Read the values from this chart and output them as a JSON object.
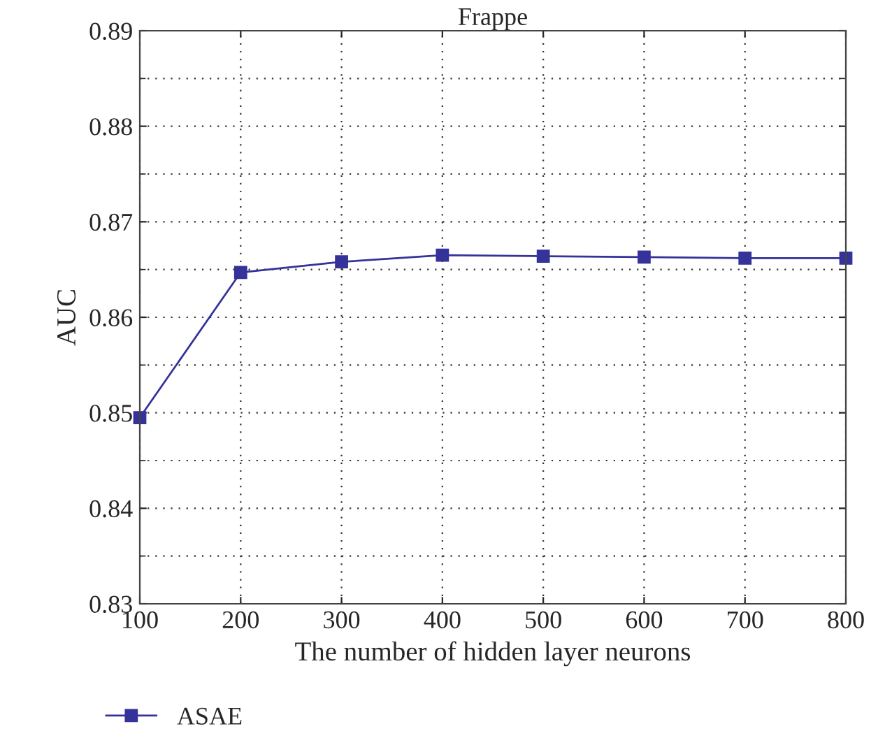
{
  "chart_data": {
    "type": "line",
    "title": "Frappe",
    "xlabel": "The number of hidden layer neurons",
    "ylabel": "AUC",
    "x": [
      100,
      200,
      300,
      400,
      500,
      600,
      700,
      800
    ],
    "series": [
      {
        "name": "ASAE",
        "color": "#35329a",
        "values": [
          0.8495,
          0.8647,
          0.8658,
          0.8665,
          0.8664,
          0.8663,
          0.8662,
          0.8662
        ]
      }
    ],
    "xlim": [
      100,
      800
    ],
    "xticks": [
      100,
      200,
      300,
      400,
      500,
      600,
      700,
      800
    ],
    "ylim": [
      0.83,
      0.89
    ],
    "yticks": [
      0.83,
      0.84,
      0.85,
      0.86,
      0.87,
      0.88,
      0.89
    ],
    "grid": true,
    "legend": "bottom left",
    "marker": "square",
    "line_style": "solid"
  }
}
